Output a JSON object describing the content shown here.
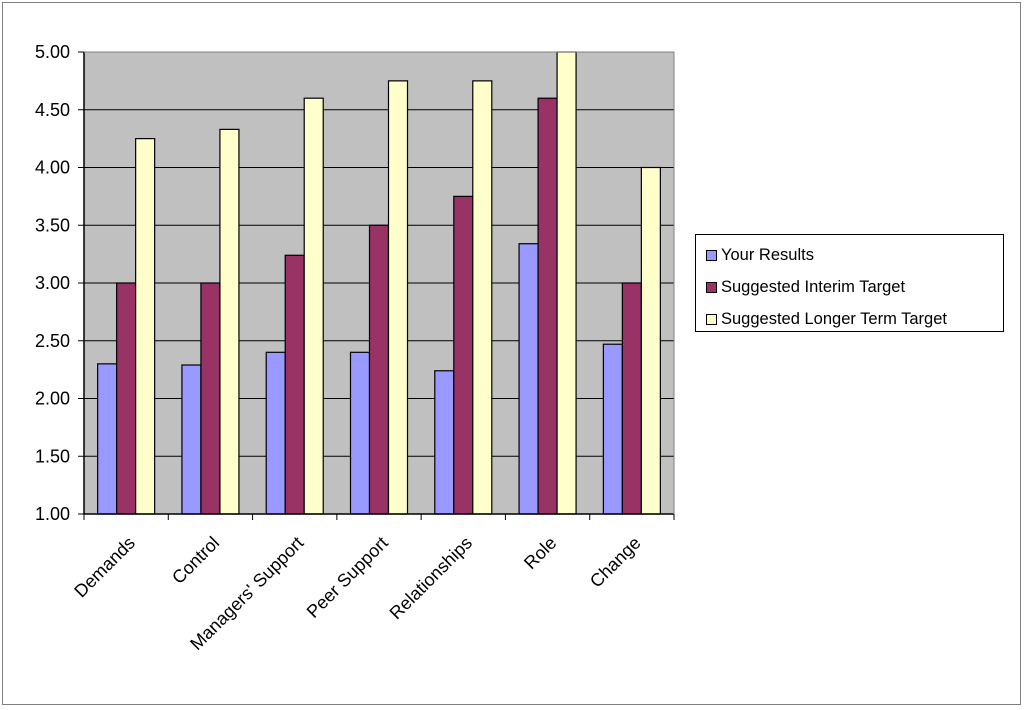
{
  "chart_data": {
    "type": "bar",
    "title": "",
    "xlabel": "",
    "ylabel": "",
    "categories": [
      "Demands",
      "Control",
      "Managers' Support",
      "Peer Support",
      "Relationships",
      "Role",
      "Change"
    ],
    "series": [
      {
        "name": "Your Results",
        "color": "#9999ff",
        "values": [
          2.3,
          2.29,
          2.4,
          2.4,
          2.24,
          3.34,
          2.47
        ]
      },
      {
        "name": "Suggested Interim Target",
        "color": "#993366",
        "values": [
          3.0,
          3.0,
          3.24,
          3.5,
          3.75,
          4.6,
          3.0
        ]
      },
      {
        "name": "Suggested Longer Term Target",
        "color": "#ffffcc",
        "values": [
          4.25,
          4.33,
          4.6,
          4.75,
          4.75,
          5.0,
          4.0
        ]
      }
    ],
    "ylim": [
      1.0,
      5.0
    ],
    "yticks": [
      "1.00",
      "1.50",
      "2.00",
      "2.50",
      "3.00",
      "3.50",
      "4.00",
      "4.50",
      "5.00"
    ],
    "grid": true,
    "plot_background": "#c0c0c0",
    "legend_position": "right"
  }
}
